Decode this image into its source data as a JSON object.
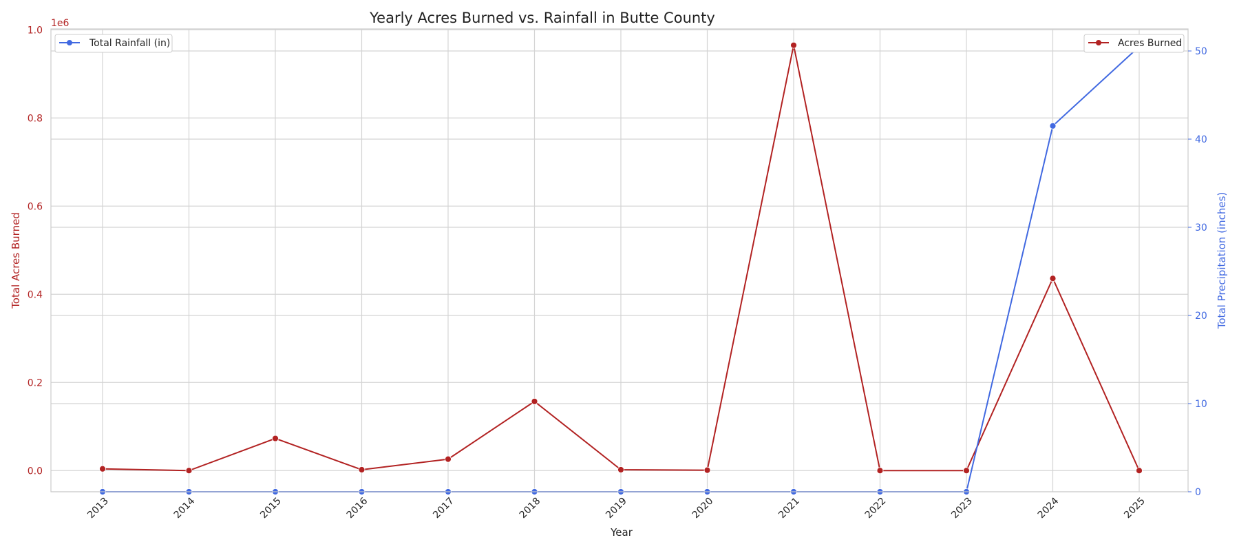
{
  "chart_data": {
    "type": "line",
    "title": "Yearly Acres Burned vs. Rainfall in Butte County",
    "xlabel": "Year",
    "ylabel_left": "Total Acres Burned",
    "ylabel_right": "Total Precipitation (inches)",
    "left_offset_label": "1e6",
    "categories": [
      "2013",
      "2014",
      "2015",
      "2016",
      "2017",
      "2018",
      "2019",
      "2020",
      "2021",
      "2022",
      "2023",
      "2024",
      "2025"
    ],
    "left_axis": {
      "ylim": [
        -0.048,
        1.002
      ],
      "ticks": [
        0.0,
        0.2,
        0.4,
        0.6,
        0.8,
        1.0
      ],
      "tick_labels": [
        "0.0",
        "0.2",
        "0.4",
        "0.6",
        "0.8",
        "1.0"
      ],
      "scale_note": "values in millions of acres (1e6)"
    },
    "right_axis": {
      "ylim": [
        0,
        52.5
      ],
      "ticks": [
        0,
        10,
        20,
        30,
        40,
        50
      ],
      "tick_labels": [
        "0",
        "10",
        "20",
        "30",
        "40",
        "50"
      ]
    },
    "series": [
      {
        "name": "Acres Burned",
        "axis": "left",
        "color": "#b22222",
        "values": [
          0.004,
          0.0,
          0.073,
          0.002,
          0.026,
          0.157,
          0.002,
          0.001,
          0.965,
          0.0,
          0.0,
          0.436,
          0.0
        ]
      },
      {
        "name": "Total Rainfall (in)",
        "axis": "right",
        "color": "#4169e1",
        "values": [
          0,
          0,
          0,
          0,
          0,
          0,
          0,
          0,
          0,
          0,
          0,
          41.5,
          50.5
        ]
      }
    ],
    "legend_left": {
      "label": "Total Rainfall (in)",
      "placement": "top-left"
    },
    "legend_right": {
      "label": "Acres Burned",
      "placement": "top-right"
    },
    "grid": true
  }
}
